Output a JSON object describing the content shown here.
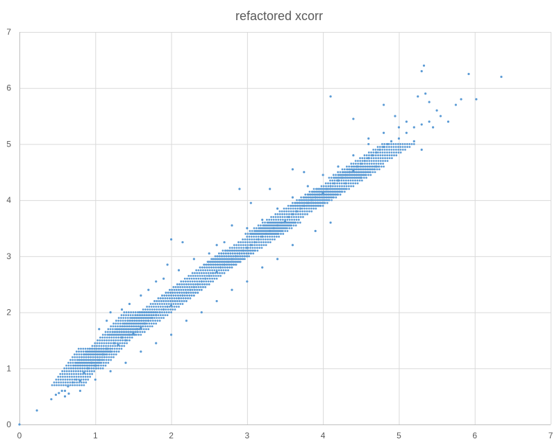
{
  "chart_data": {
    "type": "scatter",
    "title": "refactored xcorr",
    "xlabel": "",
    "ylabel": "",
    "xlim": [
      0,
      7
    ],
    "ylim": [
      0,
      7
    ],
    "x_ticks": [
      "0",
      "1",
      "2",
      "3",
      "4",
      "5",
      "6",
      "7"
    ],
    "y_ticks": [
      "0",
      "1",
      "2",
      "3",
      "4",
      "5",
      "6",
      "7"
    ],
    "grid": true,
    "legend": "none",
    "marker_color": "#5b9bd5",
    "series": [
      {
        "points": [
          [
            0.0,
            0.0
          ],
          [
            0.23,
            0.25
          ],
          [
            0.42,
            0.45
          ],
          [
            0.48,
            0.53
          ],
          [
            0.52,
            0.56
          ],
          [
            0.56,
            0.6
          ],
          [
            0.6,
            0.6
          ],
          [
            0.64,
            0.68
          ],
          [
            0.7,
            0.75
          ],
          [
            0.75,
            0.8
          ],
          [
            0.8,
            0.78
          ],
          [
            0.85,
            0.92
          ],
          [
            0.9,
            1.0
          ],
          [
            0.95,
            1.1
          ],
          [
            1.0,
            1.05
          ],
          [
            1.05,
            1.15
          ],
          [
            1.1,
            1.25
          ],
          [
            1.15,
            1.35
          ],
          [
            1.2,
            1.3
          ],
          [
            1.25,
            1.45
          ],
          [
            1.3,
            1.42
          ],
          [
            1.35,
            1.55
          ],
          [
            1.4,
            1.5
          ],
          [
            1.45,
            1.6
          ],
          [
            1.5,
            1.62
          ],
          [
            1.55,
            1.7
          ],
          [
            1.6,
            1.72
          ],
          [
            1.65,
            1.8
          ],
          [
            1.7,
            1.85
          ],
          [
            1.75,
            1.9
          ],
          [
            1.8,
            1.95
          ],
          [
            1.85,
            2.0
          ],
          [
            1.9,
            2.05
          ],
          [
            1.95,
            2.1
          ],
          [
            2.0,
            2.12
          ],
          [
            2.05,
            2.2
          ],
          [
            2.1,
            2.25
          ],
          [
            2.15,
            2.3
          ],
          [
            2.2,
            2.35
          ],
          [
            2.25,
            2.4
          ],
          [
            2.3,
            2.45
          ],
          [
            2.35,
            2.5
          ],
          [
            2.4,
            2.55
          ],
          [
            2.45,
            2.6
          ],
          [
            2.5,
            2.65
          ],
          [
            2.55,
            2.7
          ],
          [
            2.6,
            2.72
          ],
          [
            2.65,
            2.8
          ],
          [
            2.7,
            2.85
          ],
          [
            2.75,
            2.9
          ],
          [
            2.8,
            2.95
          ],
          [
            2.85,
            3.0
          ],
          [
            2.9,
            3.05
          ],
          [
            2.95,
            3.1
          ],
          [
            3.0,
            3.15
          ],
          [
            3.05,
            3.2
          ],
          [
            3.1,
            3.25
          ],
          [
            3.15,
            3.3
          ],
          [
            3.2,
            3.35
          ],
          [
            3.25,
            3.4
          ],
          [
            3.3,
            3.45
          ],
          [
            3.35,
            3.5
          ],
          [
            3.4,
            3.55
          ],
          [
            3.45,
            3.6
          ],
          [
            3.5,
            3.62
          ],
          [
            3.55,
            3.7
          ],
          [
            3.6,
            3.75
          ],
          [
            3.65,
            3.8
          ],
          [
            3.7,
            3.85
          ],
          [
            3.75,
            3.9
          ],
          [
            3.8,
            3.95
          ],
          [
            3.85,
            4.0
          ],
          [
            3.9,
            4.05
          ],
          [
            3.95,
            4.1
          ],
          [
            4.0,
            4.12
          ],
          [
            4.05,
            4.2
          ],
          [
            4.1,
            4.25
          ],
          [
            4.15,
            4.3
          ],
          [
            4.2,
            4.35
          ],
          [
            4.25,
            4.4
          ],
          [
            4.3,
            4.45
          ],
          [
            4.35,
            4.5
          ],
          [
            4.4,
            4.52
          ],
          [
            4.45,
            4.6
          ],
          [
            4.5,
            4.65
          ],
          [
            4.55,
            4.7
          ],
          [
            4.6,
            4.75
          ],
          [
            4.65,
            4.8
          ],
          [
            4.7,
            4.85
          ],
          [
            4.75,
            4.9
          ],
          [
            4.8,
            4.95
          ],
          [
            4.85,
            5.0
          ],
          [
            4.9,
            5.05
          ],
          [
            5.0,
            5.1
          ],
          [
            5.1,
            5.2
          ],
          [
            5.2,
            5.3
          ],
          [
            5.3,
            5.35
          ],
          [
            5.4,
            5.4
          ],
          [
            1.95,
            2.85
          ],
          [
            2.0,
            3.3
          ],
          [
            2.15,
            3.25
          ],
          [
            2.6,
            3.2
          ],
          [
            2.8,
            3.55
          ],
          [
            2.9,
            4.2
          ],
          [
            3.05,
            3.95
          ],
          [
            3.3,
            4.2
          ],
          [
            3.6,
            4.55
          ],
          [
            3.75,
            4.5
          ],
          [
            4.1,
            5.85
          ],
          [
            4.4,
            5.45
          ],
          [
            4.6,
            5.1
          ],
          [
            4.8,
            5.7
          ],
          [
            4.95,
            5.5
          ],
          [
            5.1,
            5.4
          ],
          [
            5.25,
            5.85
          ],
          [
            5.3,
            6.3
          ],
          [
            5.33,
            6.4
          ],
          [
            5.35,
            5.9
          ],
          [
            5.4,
            5.75
          ],
          [
            5.5,
            5.6
          ],
          [
            5.55,
            5.5
          ],
          [
            5.65,
            5.4
          ],
          [
            5.75,
            5.7
          ],
          [
            5.82,
            5.8
          ],
          [
            5.92,
            6.25
          ],
          [
            6.02,
            5.8
          ],
          [
            6.35,
            6.2
          ],
          [
            5.3,
            4.9
          ],
          [
            5.2,
            5.05
          ],
          [
            5.45,
            5.3
          ],
          [
            4.3,
            4.3
          ],
          [
            4.5,
            4.4
          ],
          [
            4.7,
            4.6
          ],
          [
            4.1,
            3.6
          ],
          [
            3.9,
            3.45
          ],
          [
            3.6,
            3.2
          ],
          [
            3.4,
            2.95
          ],
          [
            3.2,
            2.8
          ],
          [
            3.0,
            2.55
          ],
          [
            2.8,
            2.4
          ],
          [
            2.6,
            2.2
          ],
          [
            2.4,
            2.0
          ],
          [
            2.2,
            1.85
          ],
          [
            2.0,
            1.6
          ],
          [
            1.8,
            1.45
          ],
          [
            1.6,
            1.3
          ],
          [
            1.4,
            1.1
          ],
          [
            1.2,
            0.95
          ],
          [
            1.0,
            0.8
          ],
          [
            0.8,
            0.6
          ],
          [
            0.65,
            0.55
          ],
          [
            0.6,
            0.5
          ],
          [
            1.05,
            1.7
          ],
          [
            1.15,
            1.85
          ],
          [
            1.2,
            2.0
          ],
          [
            1.35,
            2.05
          ],
          [
            1.45,
            2.15
          ],
          [
            1.6,
            2.3
          ],
          [
            1.7,
            2.4
          ],
          [
            1.8,
            2.55
          ],
          [
            1.9,
            2.6
          ],
          [
            2.1,
            2.75
          ],
          [
            2.3,
            2.95
          ],
          [
            2.5,
            3.05
          ],
          [
            2.7,
            3.25
          ],
          [
            3.0,
            3.5
          ],
          [
            3.2,
            3.65
          ],
          [
            3.4,
            3.85
          ],
          [
            3.6,
            4.05
          ],
          [
            3.8,
            4.25
          ],
          [
            4.0,
            4.45
          ],
          [
            4.2,
            4.6
          ],
          [
            4.4,
            4.8
          ],
          [
            4.6,
            5.0
          ],
          [
            4.8,
            5.2
          ],
          [
            5.0,
            5.3
          ]
        ],
        "bands": [
          {
            "x_from": 0.65,
            "x_to": 1.0,
            "y_from": 0.7,
            "y_to": 1.35
          },
          {
            "x_from": 0.9,
            "x_to": 1.6,
            "y_from": 1.0,
            "y_to": 2.0
          },
          {
            "x_from": 1.4,
            "x_to": 2.3,
            "y_from": 1.6,
            "y_to": 2.5
          },
          {
            "x_from": 2.0,
            "x_to": 2.9,
            "y_from": 2.2,
            "y_to": 3.1
          },
          {
            "x_from": 2.6,
            "x_to": 3.5,
            "y_from": 2.8,
            "y_to": 3.6
          },
          {
            "x_from": 3.2,
            "x_to": 4.1,
            "y_from": 3.4,
            "y_to": 4.2
          },
          {
            "x_from": 3.8,
            "x_to": 4.6,
            "y_from": 3.9,
            "y_to": 4.6
          },
          {
            "x_from": 4.3,
            "x_to": 5.0,
            "y_from": 4.4,
            "y_to": 5.0
          }
        ]
      }
    ]
  }
}
